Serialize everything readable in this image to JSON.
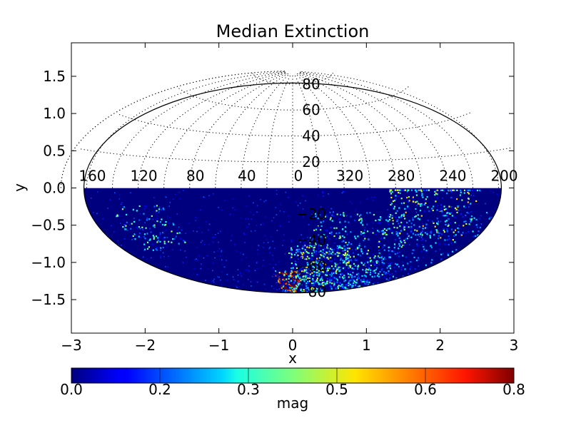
{
  "chart_data": {
    "type": "heatmap",
    "title": "Median Extinction",
    "xlabel": "x",
    "ylabel": "y",
    "xlim": [
      -3,
      3
    ],
    "ylim": [
      -1.95,
      1.95
    ],
    "projection": "aitoff-style all-sky ellipse, data shown only for southern hemisphere (y < 0)",
    "grid": true,
    "x_ticks": [
      "−3",
      "−2",
      "−1",
      "0",
      "1",
      "2",
      "3"
    ],
    "x_tick_values": [
      -3,
      -2,
      -1,
      0,
      1,
      2,
      3
    ],
    "y_ticks": [
      "1.5",
      "1.0",
      "0.5",
      "0.0",
      "−0.5",
      "−1.0",
      "−1.5"
    ],
    "y_tick_values": [
      1.5,
      1.0,
      0.5,
      0.0,
      -0.5,
      -1.0,
      -1.5
    ],
    "longitude_labels": [
      {
        "text": "200",
        "lon": 200
      },
      {
        "text": "240",
        "lon": 240
      },
      {
        "text": "280",
        "lon": 280
      },
      {
        "text": "320",
        "lon": 320
      },
      {
        "text": "0",
        "lon": 0
      },
      {
        "text": "40",
        "lon": 40
      },
      {
        "text": "80",
        "lon": 80
      },
      {
        "text": "120",
        "lon": 120
      },
      {
        "text": "160",
        "lon": 160
      }
    ],
    "latitude_labels": [
      {
        "text": "80",
        "lat": 80
      },
      {
        "text": "60",
        "lat": 60
      },
      {
        "text": "40",
        "lat": 40
      },
      {
        "text": "20",
        "lat": 20
      },
      {
        "text": "−20",
        "lat": -20
      },
      {
        "text": "−40",
        "lat": -40
      },
      {
        "text": "−60",
        "lat": -60
      },
      {
        "text": "−80",
        "lat": -80
      }
    ],
    "colorbar": {
      "label": "mag",
      "range": [
        0.0,
        0.8
      ],
      "tick_labels": [
        "0.0",
        "0.2",
        "0.3",
        "0.5",
        "0.6",
        "0.8"
      ],
      "colormap": "jet"
    },
    "colors": {
      "background": "#00007f",
      "outline": "#000000"
    }
  }
}
